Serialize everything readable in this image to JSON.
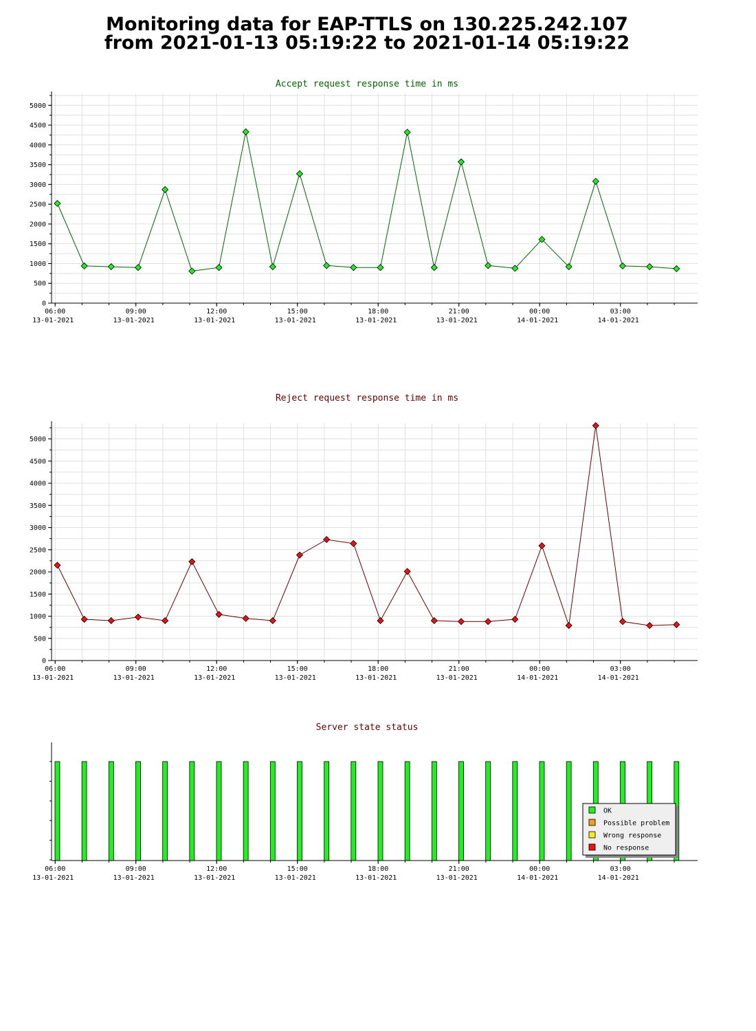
{
  "page": {
    "title_line1": "Monitoring data for EAP-TTLS on 130.225.242.107",
    "title_line2": "from 2021-01-13 05:19:22 to 2021-01-14 05:19:22"
  },
  "x_axis": {
    "start": "2021-01-13 05:52",
    "end": "2021-01-14 05:52",
    "ticks": [
      {
        "time": "06:00",
        "date": "13-01-2021",
        "hour_index": 0
      },
      {
        "time": "09:00",
        "date": "13-01-2021",
        "hour_index": 3
      },
      {
        "time": "12:00",
        "date": "13-01-2021",
        "hour_index": 6
      },
      {
        "time": "15:00",
        "date": "13-01-2021",
        "hour_index": 9
      },
      {
        "time": "18:00",
        "date": "13-01-2021",
        "hour_index": 12
      },
      {
        "time": "21:00",
        "date": "13-01-2021",
        "hour_index": 15
      },
      {
        "time": "00:00",
        "date": "14-01-2021",
        "hour_index": 18
      },
      {
        "time": "03:00",
        "date": "14-01-2021",
        "hour_index": 21
      }
    ]
  },
  "chart_data": [
    {
      "type": "line",
      "title": "Accept request response time in ms",
      "title_color": "#006400",
      "line_color": "#006400",
      "marker_color": "#22ee22",
      "xlabel": "",
      "ylabel": "",
      "ylim": [
        0,
        5300
      ],
      "yticks": [
        0,
        500,
        1000,
        1500,
        2000,
        2500,
        3000,
        3500,
        4000,
        4500,
        5000
      ],
      "grid": true,
      "x": [
        "2021-01-13 06:05",
        "2021-01-13 07:05",
        "2021-01-13 08:05",
        "2021-01-13 09:05",
        "2021-01-13 10:05",
        "2021-01-13 11:05",
        "2021-01-13 12:05",
        "2021-01-13 13:05",
        "2021-01-13 14:05",
        "2021-01-13 15:05",
        "2021-01-13 16:05",
        "2021-01-13 17:05",
        "2021-01-13 18:05",
        "2021-01-13 19:05",
        "2021-01-13 20:05",
        "2021-01-13 21:05",
        "2021-01-13 22:05",
        "2021-01-13 23:05",
        "2021-01-14 00:05",
        "2021-01-14 01:05",
        "2021-01-14 02:05",
        "2021-01-14 03:05",
        "2021-01-14 04:05",
        "2021-01-14 05:05"
      ],
      "values": [
        2520,
        940,
        920,
        900,
        2870,
        810,
        900,
        4330,
        920,
        3270,
        950,
        900,
        900,
        4320,
        900,
        3570,
        950,
        880,
        1610,
        920,
        3080,
        940,
        920,
        870
      ]
    },
    {
      "type": "line",
      "title": "Reject request response time in ms",
      "title_color": "#640000",
      "line_color": "#640000",
      "marker_color": "#ee1111",
      "xlabel": "",
      "ylabel": "",
      "ylim": [
        0,
        5350
      ],
      "yticks": [
        0,
        500,
        1000,
        1500,
        2000,
        2500,
        3000,
        3500,
        4000,
        4500,
        5000
      ],
      "grid": true,
      "x": [
        "2021-01-13 06:05",
        "2021-01-13 07:05",
        "2021-01-13 08:05",
        "2021-01-13 09:05",
        "2021-01-13 10:05",
        "2021-01-13 11:05",
        "2021-01-13 12:05",
        "2021-01-13 13:05",
        "2021-01-13 14:05",
        "2021-01-13 15:05",
        "2021-01-13 16:05",
        "2021-01-13 17:05",
        "2021-01-13 18:05",
        "2021-01-13 19:05",
        "2021-01-13 20:05",
        "2021-01-13 21:05",
        "2021-01-13 22:05",
        "2021-01-13 23:05",
        "2021-01-14 00:05",
        "2021-01-14 01:05",
        "2021-01-14 02:05",
        "2021-01-14 03:05",
        "2021-01-14 04:05",
        "2021-01-14 05:05"
      ],
      "values": [
        2150,
        930,
        900,
        980,
        900,
        2230,
        1040,
        950,
        900,
        2380,
        2730,
        2640,
        900,
        2010,
        900,
        880,
        880,
        930,
        2590,
        790,
        5300,
        880,
        790,
        810
      ]
    },
    {
      "type": "bar",
      "title": "Server state status",
      "title_color": "#640000",
      "legend_position": "bottom-right",
      "legend": [
        {
          "label": "OK",
          "color": "#22ee22"
        },
        {
          "label": "Possible problem",
          "color": "#f0a020"
        },
        {
          "label": "Wrong response",
          "color": "#f0f020"
        },
        {
          "label": "No response",
          "color": "#ee1111"
        }
      ],
      "x": [
        "2021-01-13 06:05",
        "2021-01-13 07:05",
        "2021-01-13 08:05",
        "2021-01-13 09:05",
        "2021-01-13 10:05",
        "2021-01-13 11:05",
        "2021-01-13 12:05",
        "2021-01-13 13:05",
        "2021-01-13 14:05",
        "2021-01-13 15:05",
        "2021-01-13 16:05",
        "2021-01-13 17:05",
        "2021-01-13 18:05",
        "2021-01-13 19:05",
        "2021-01-13 20:05",
        "2021-01-13 21:05",
        "2021-01-13 22:05",
        "2021-01-13 23:05",
        "2021-01-14 00:05",
        "2021-01-14 01:05",
        "2021-01-14 02:05",
        "2021-01-14 03:05",
        "2021-01-14 04:05",
        "2021-01-14 05:05"
      ],
      "values": [
        "OK",
        "OK",
        "OK",
        "OK",
        "OK",
        "OK",
        "OK",
        "OK",
        "OK",
        "OK",
        "OK",
        "OK",
        "OK",
        "OK",
        "OK",
        "OK",
        "OK",
        "OK",
        "OK",
        "OK",
        "OK",
        "OK",
        "OK",
        "OK"
      ]
    }
  ]
}
